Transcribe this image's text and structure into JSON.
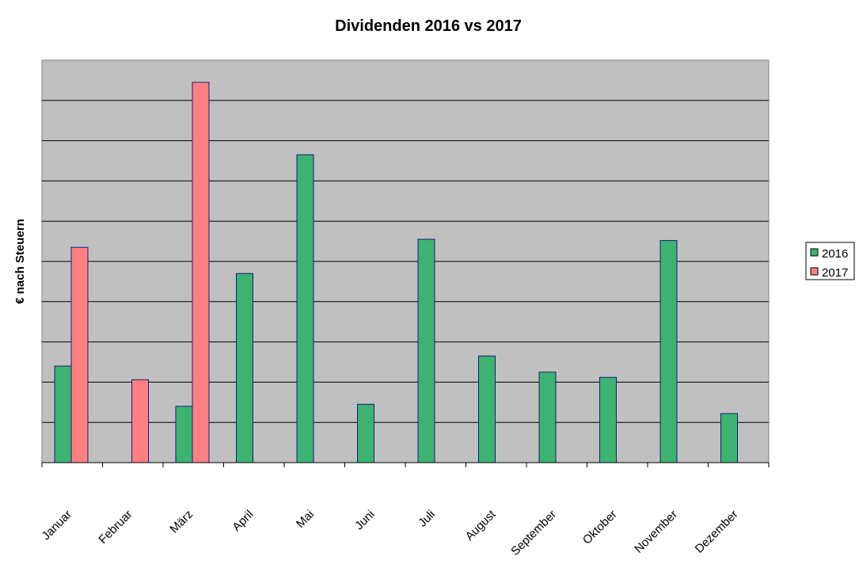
{
  "chart_data": {
    "type": "bar",
    "title": "Dividenden 2016 vs 2017",
    "xlabel": "",
    "ylabel": "€ nach Steuern",
    "categories": [
      "Januar",
      "Februar",
      "März",
      "April",
      "Mai",
      "Juni",
      "Juli",
      "August",
      "September",
      "Oktober",
      "November",
      "Dezember"
    ],
    "series": [
      {
        "name": "2016",
        "color": "#3cb371",
        "values": [
          2.4,
          null,
          1.4,
          4.7,
          7.65,
          1.45,
          5.55,
          2.65,
          2.25,
          2.12,
          5.52,
          1.22
        ]
      },
      {
        "name": "2017",
        "color": "#ff8080",
        "values": [
          5.35,
          2.06,
          9.45,
          null,
          null,
          null,
          null,
          null,
          null,
          null,
          null,
          null
        ]
      }
    ],
    "ylim": [
      0,
      10
    ],
    "grid": true,
    "legend": "right",
    "plot_background": "#c0c0c0"
  }
}
